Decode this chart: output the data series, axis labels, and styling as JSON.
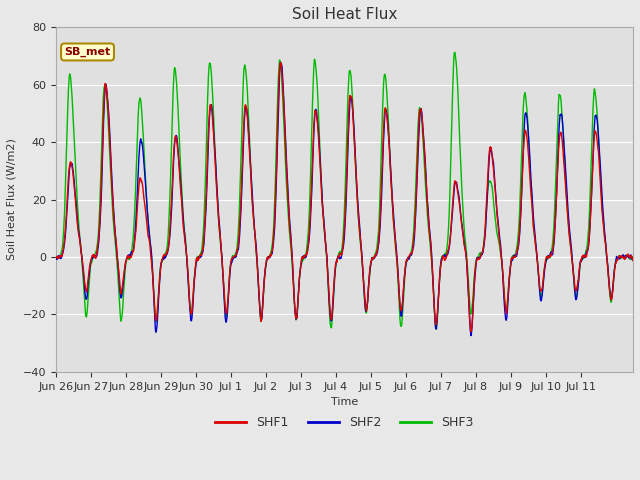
{
  "title": "Soil Heat Flux",
  "ylabel": "Soil Heat Flux (W/m2)",
  "xlabel": "Time",
  "ylim": [
    -40,
    80
  ],
  "fig_bg_color": "#e8e8e8",
  "plot_bg_color": "#e0e0e0",
  "grid_color": "white",
  "shf1_color": "#dd0000",
  "shf2_color": "#0000cc",
  "shf3_color": "#00bb00",
  "annotation_text": "SB_met",
  "annotation_bg": "#ffffcc",
  "annotation_border": "#aa8800",
  "annotation_text_color": "#880000",
  "legend_labels": [
    "SHF1",
    "SHF2",
    "SHF3"
  ],
  "yticks": [
    -40,
    -20,
    0,
    20,
    40,
    60,
    80
  ],
  "xtick_labels": [
    "Jun 26",
    "Jun 27",
    "Jun 28",
    "Jun 29",
    "Jun 30",
    "Jul 1",
    "Jul 2",
    "Jul 3",
    "Jul 4",
    "Jul 5",
    "Jul 6",
    "Jul 7",
    "Jul 8",
    "Jul 9",
    "Jul 10",
    "Jul 11"
  ],
  "line_width": 1.0,
  "n_points": 3000,
  "xlim_start": 0.0,
  "xlim_end": 16.5
}
